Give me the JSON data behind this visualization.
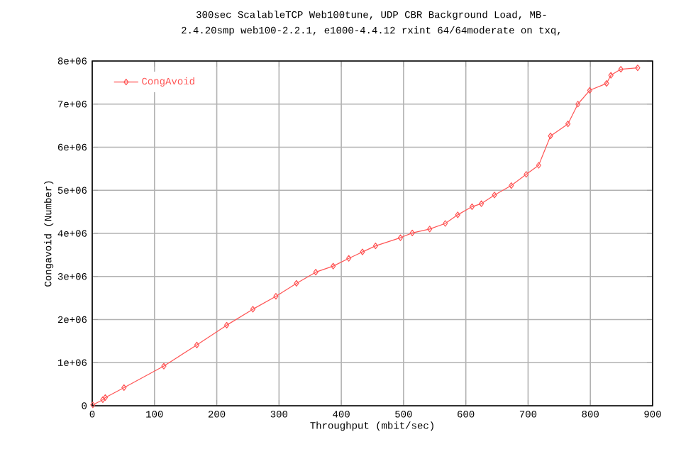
{
  "chart_data": {
    "type": "line",
    "title": "300sec ScalableTCP Web100tune, UDP CBR Background Load, MB-",
    "subtitle": "2.4.20smp web100-2.2.1, e1000-4.4.12 rxint 64/64moderate on txq,",
    "xlabel": "Throughput (mbit/sec)",
    "ylabel": "Congavoid (Number)",
    "x": [
      1,
      17,
      21,
      51,
      115,
      168,
      216,
      258,
      295,
      328,
      359,
      387,
      412,
      434,
      455,
      495,
      514,
      542,
      567,
      587,
      610,
      625,
      646,
      673,
      697,
      717,
      736,
      764,
      780,
      799,
      826,
      833,
      849,
      876
    ],
    "series": [
      {
        "name": "CongAvoid",
        "color": "#ff5555",
        "values": [
          20000,
          140000,
          190000,
          420000,
          920000,
          1410000,
          1870000,
          2240000,
          2540000,
          2840000,
          3100000,
          3240000,
          3420000,
          3570000,
          3710000,
          3900000,
          4010000,
          4100000,
          4230000,
          4430000,
          4620000,
          4690000,
          4890000,
          5110000,
          5370000,
          5580000,
          6260000,
          6540000,
          7000000,
          7320000,
          7480000,
          7670000,
          7810000,
          7840000
        ]
      }
    ],
    "xlim": [
      0,
      900
    ],
    "xticks": [
      0,
      100,
      200,
      300,
      400,
      500,
      600,
      700,
      800,
      900
    ],
    "ylim": [
      0,
      8000000
    ],
    "yticks": [
      0,
      {
        "value": 1000000,
        "label": "1e+06"
      },
      {
        "value": 2000000,
        "label": "2e+06"
      },
      {
        "value": 3000000,
        "label": "3e+06"
      },
      {
        "value": 4000000,
        "label": "4e+06"
      },
      {
        "value": 5000000,
        "label": "5e+06"
      },
      {
        "value": 6000000,
        "label": "6e+06"
      },
      {
        "value": 7000000,
        "label": "7e+06"
      },
      {
        "value": 8000000,
        "label": "8e+06"
      }
    ],
    "grid": true,
    "legend": "top left",
    "marker": "diamond",
    "line_style": "solid"
  }
}
